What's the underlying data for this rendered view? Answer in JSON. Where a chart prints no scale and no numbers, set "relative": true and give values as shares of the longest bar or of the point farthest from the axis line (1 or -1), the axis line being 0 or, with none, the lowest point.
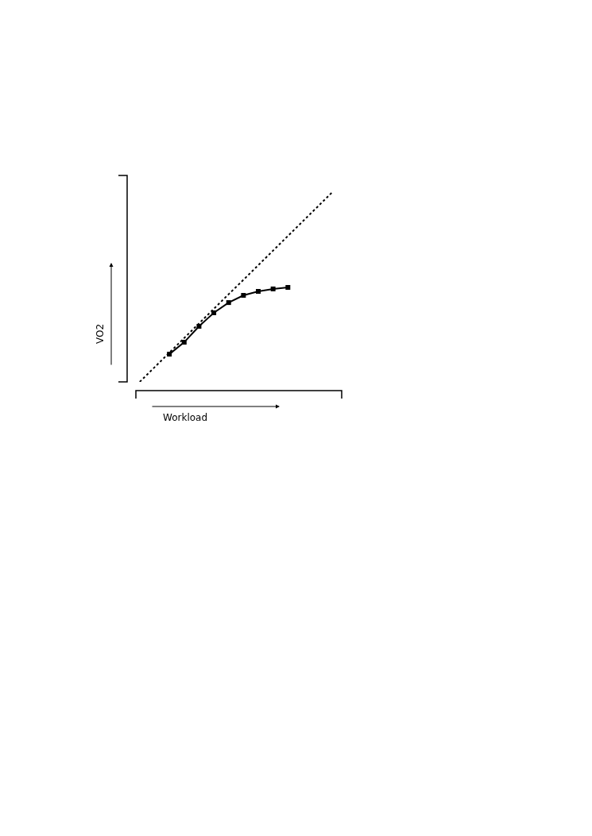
{
  "chart_data": {
    "type": "line",
    "relative": true,
    "xlabel": "Workload",
    "ylabel": "VO2",
    "marker": "square",
    "categories": [
      null,
      null,
      null,
      null,
      null,
      null,
      null,
      null,
      null,
      null,
      null,
      null,
      null,
      null
    ],
    "series": [
      {
        "color": "#000000",
        "values": [
          null,
          null,
          0.146,
          0.209,
          0.293,
          0.364,
          0.418,
          0.456,
          0.477,
          0.49,
          0.498,
          null,
          null,
          null
        ]
      },
      {
        "color": "#000000",
        "line_style": "dotted",
        "marker": "none",
        "values": [
          0,
          0.077,
          0.154,
          0.231,
          0.308,
          0.385,
          0.462,
          0.538,
          0.615,
          0.692,
          0.769,
          0.846,
          0.923,
          1
        ]
      }
    ]
  }
}
